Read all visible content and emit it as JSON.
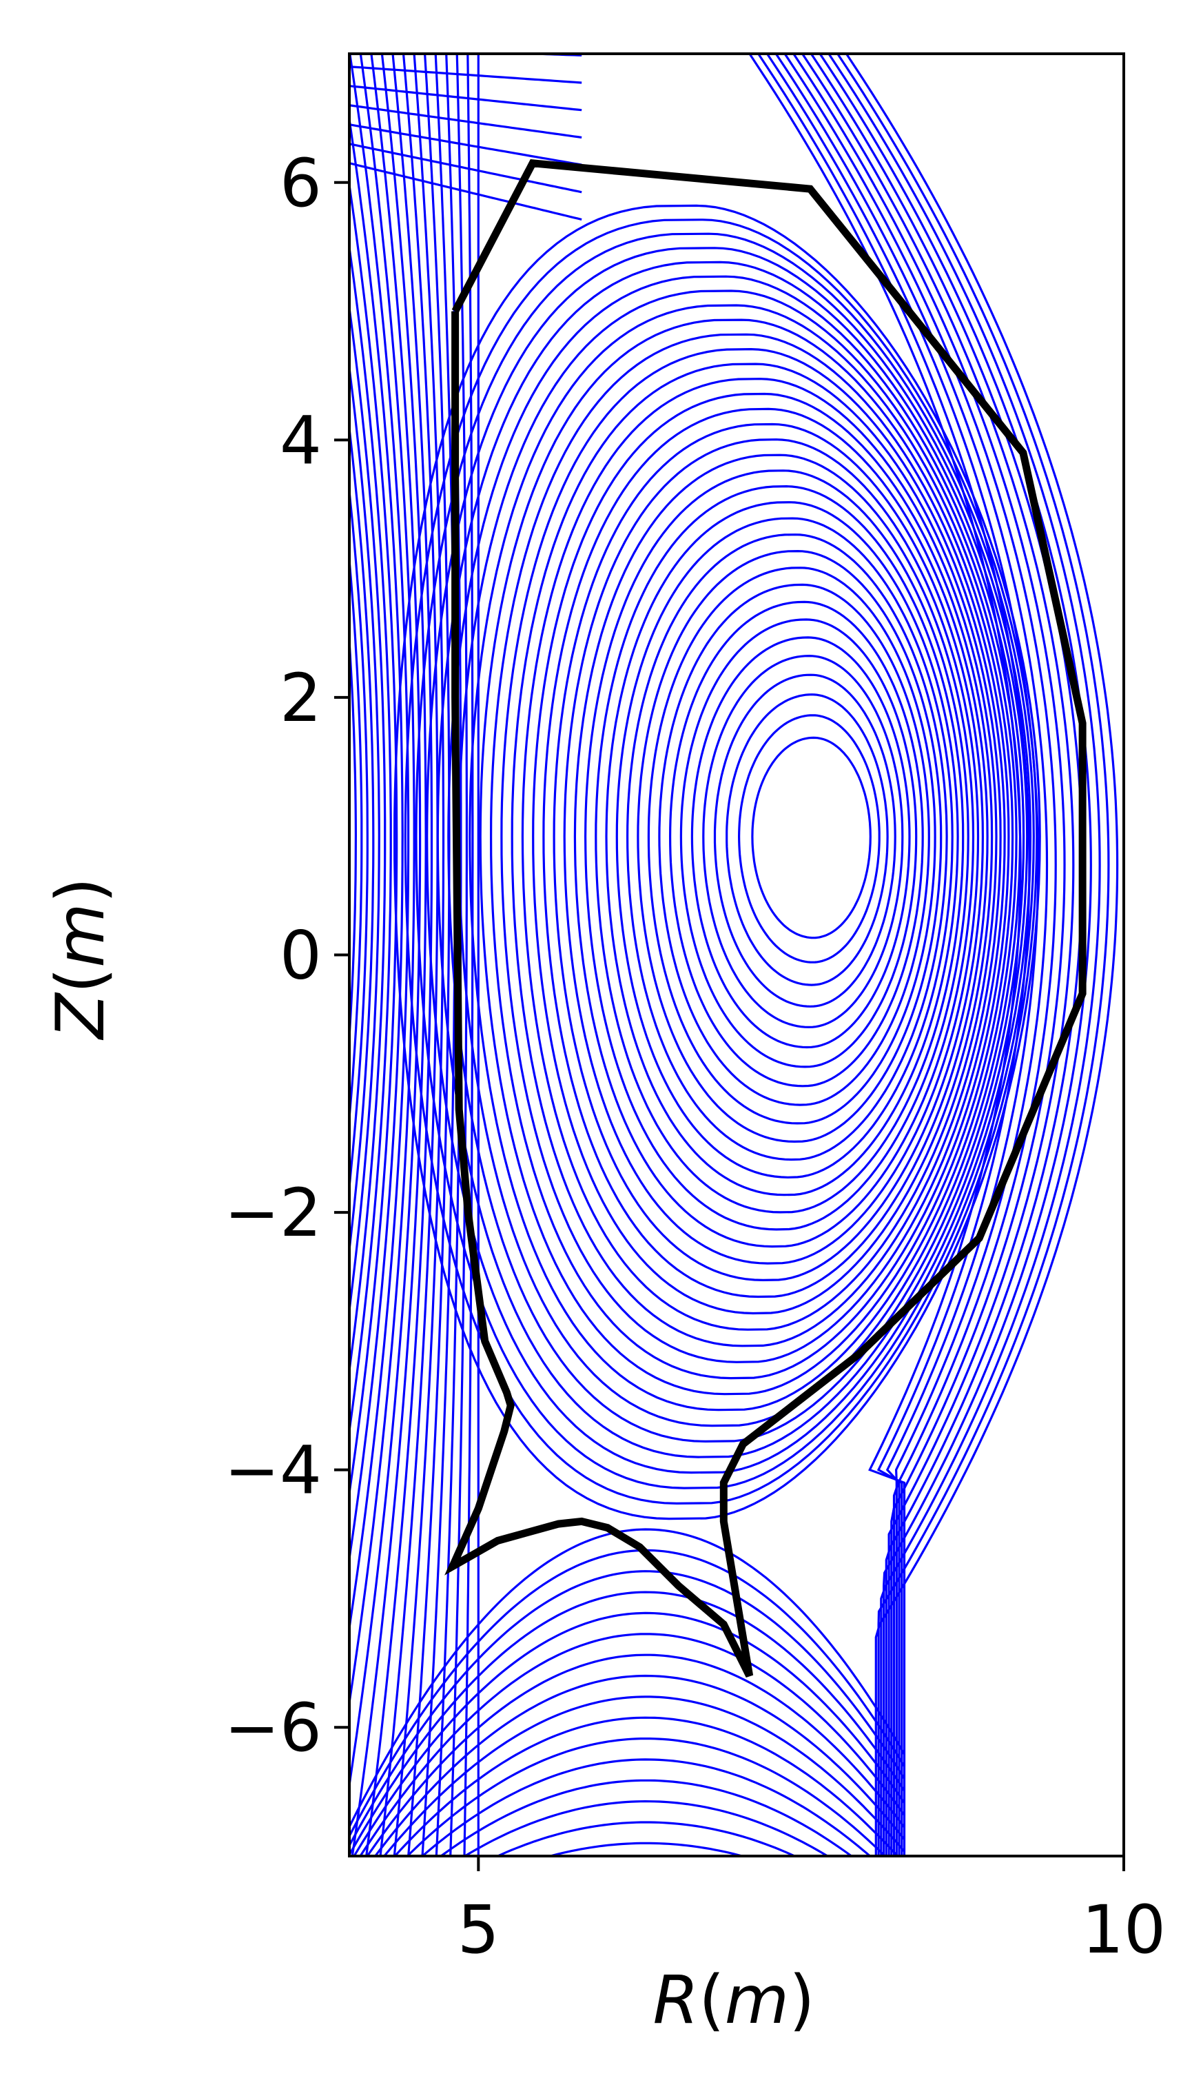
{
  "chart_data": {
    "type": "line",
    "title": "",
    "xlabel": "R(m)",
    "ylabel": "Z(m)",
    "xlabel_parts": [
      "R",
      "(",
      "m",
      ")"
    ],
    "ylabel_parts": [
      "Z",
      "(",
      "m",
      ")"
    ],
    "xlim": [
      4.0,
      10.0
    ],
    "ylim": [
      -7.0,
      7.0
    ],
    "xticks": [
      5,
      10
    ],
    "xtick_labels": [
      "5",
      "10"
    ],
    "yticks": [
      -6,
      -4,
      -2,
      0,
      2,
      4,
      6
    ],
    "ytick_labels": [
      "−6",
      "−4",
      "−2",
      "0",
      "2",
      "4",
      "6"
    ],
    "grid": false,
    "legend": "none",
    "colors": {
      "flux_contours": "#0000ff",
      "wall": "#000000",
      "axes": "#000000",
      "background": "#ffffff"
    },
    "series": [
      {
        "kind": "flux-contours",
        "description_visible": "poloidal flux surfaces",
        "magnetic_axis": {
          "R": 7.6,
          "Z": 0.92
        },
        "lower_x_point": {
          "R": 6.2,
          "Z": -4.05
        },
        "upper_x_point": {
          "R": 5.1,
          "Z": 6.2
        },
        "closed_surfaces": 34,
        "open_lines_left": 22,
        "open_lines_bottom": 16,
        "open_lines_top": 8
      },
      {
        "kind": "wall-outline",
        "R": [
          4.82,
          5.42,
          7.57,
          9.22,
          9.68,
          9.68,
          8.88,
          7.95,
          7.05,
          6.9,
          6.9,
          7.0,
          7.1,
          6.9,
          6.55,
          6.25,
          6.0,
          5.8,
          5.62,
          5.15,
          4.8,
          5.0,
          5.2,
          5.25,
          5.22,
          5.05,
          4.92,
          4.85,
          4.82,
          4.82
        ],
        "Z": [
          5.0,
          6.15,
          5.95,
          3.9,
          1.8,
          -0.3,
          -2.2,
          -3.1,
          -3.8,
          -4.1,
          -4.4,
          -5.0,
          -5.6,
          -5.2,
          -4.9,
          -4.6,
          -4.45,
          -4.4,
          -4.42,
          -4.55,
          -4.75,
          -4.3,
          -3.7,
          -3.5,
          -3.4,
          -3.0,
          -2.0,
          -1.2,
          2.0,
          5.0
        ]
      }
    ]
  }
}
